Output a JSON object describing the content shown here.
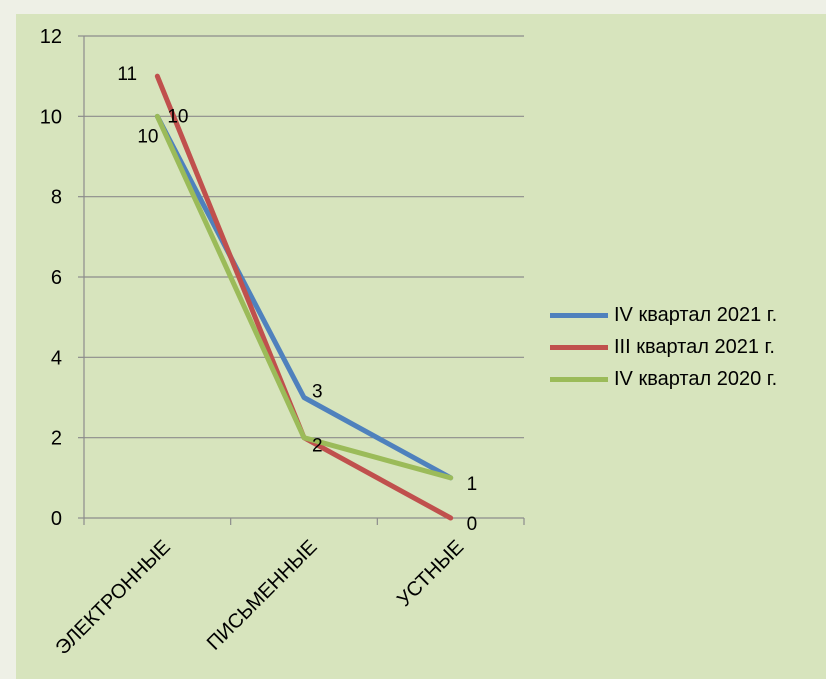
{
  "chart_data": {
    "type": "line",
    "categories": [
      "ЭЛЕКТРОННЫЕ",
      "ПИСЬМЕННЫЕ",
      "УСТНЫЕ"
    ],
    "series": [
      {
        "name": "IV квартал 2021 г.",
        "values": [
          10,
          3,
          1
        ],
        "color": "#4f81bd"
      },
      {
        "name": "III квартал 2021 г.",
        "values": [
          11,
          2,
          0
        ],
        "color": "#c0504d"
      },
      {
        "name": "IV квартал 2020 г.",
        "values": [
          10,
          2,
          1
        ],
        "color": "#9bbb59"
      }
    ],
    "y_ticks": [
      "0",
      "2",
      "4",
      "6",
      "8",
      "10",
      "12"
    ],
    "ylim": [
      0,
      12
    ],
    "grid": true,
    "legend_position": "right"
  }
}
